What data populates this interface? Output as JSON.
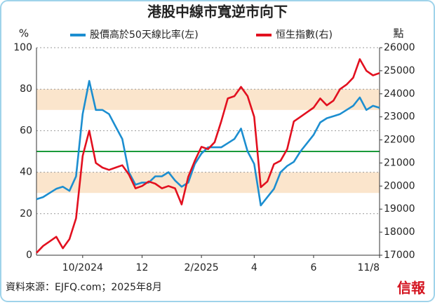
{
  "chart_data": {
    "type": "line",
    "title": "港股中線市寬逆市向下",
    "y_label": "%",
    "y2_label": "點",
    "source": "資料來源：EJFQ.com；2025年8月",
    "logo": "信報",
    "categories": [
      null,
      null,
      null,
      null,
      null,
      null,
      null,
      "10/2024",
      null,
      null,
      null,
      null,
      null,
      null,
      null,
      null,
      "12",
      null,
      null,
      null,
      null,
      null,
      null,
      null,
      null,
      "2/2025",
      null,
      null,
      null,
      null,
      null,
      null,
      null,
      "4",
      null,
      null,
      null,
      null,
      null,
      null,
      null,
      null,
      "6",
      null,
      null,
      null,
      null,
      null,
      null,
      null,
      null,
      null,
      "11/8"
    ],
    "series": [
      {
        "name": "股價高於50天線比率(左)",
        "color": "#1c8ed0",
        "axis": "y",
        "values": [
          27,
          28,
          30,
          32,
          33,
          31,
          38,
          68,
          84,
          70,
          70,
          68,
          62,
          56,
          40,
          34,
          35,
          35,
          38,
          38,
          40,
          36,
          33,
          35,
          44,
          49,
          52,
          52,
          52,
          54,
          56,
          61,
          50,
          44,
          24,
          28,
          32,
          40,
          43,
          45,
          50,
          54,
          58,
          64,
          66,
          67,
          68,
          70,
          72,
          76,
          70,
          72,
          71
        ]
      },
      {
        "name": "恒生指數(右)",
        "color": "#e2101f",
        "axis": "y2",
        "values": [
          17100,
          17400,
          17600,
          17800,
          17300,
          17700,
          18600,
          21300,
          22400,
          21000,
          20800,
          20700,
          20800,
          20900,
          20500,
          19900,
          20000,
          20200,
          20100,
          19900,
          20000,
          19900,
          19200,
          20400,
          21100,
          21700,
          21600,
          21900,
          22800,
          23800,
          23900,
          24300,
          23900,
          23000,
          19950,
          20200,
          20950,
          21100,
          21600,
          22800,
          23000,
          23200,
          23400,
          23800,
          23500,
          23700,
          24200,
          24400,
          24700,
          25500,
          25000,
          24800,
          24900
        ]
      }
    ],
    "ylim": [
      0,
      100
    ],
    "yticks": [
      0,
      20,
      40,
      60,
      80,
      100
    ],
    "y2lim": [
      17000,
      26000
    ],
    "y2ticks": [
      17000,
      18000,
      19000,
      20000,
      21000,
      22000,
      23000,
      24000,
      25000,
      26000
    ],
    "grid": true,
    "shaded_bands": [
      [
        30,
        40
      ],
      [
        70,
        80
      ]
    ],
    "band_color": "#fbe5cc",
    "hline": 50,
    "hline_color": "#1a9a3a"
  }
}
